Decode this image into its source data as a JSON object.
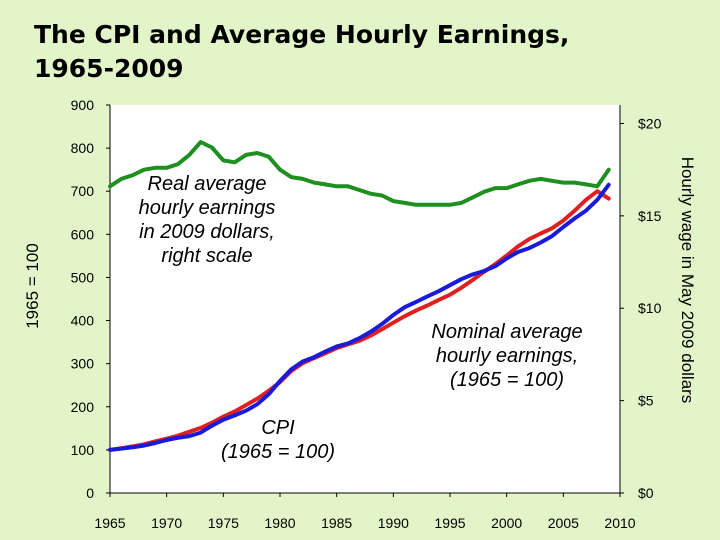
{
  "title": {
    "line1": "The CPI and Average Hourly Earnings,",
    "line2": "1965-2009"
  },
  "chart_data": {
    "type": "line",
    "x_ticks": [
      "1965",
      "1970",
      "1975",
      "1980",
      "1985",
      "1990",
      "1995",
      "2000",
      "2005",
      "2010"
    ],
    "xlim": [
      1965,
      2010
    ],
    "left_axis": {
      "label": "1965 = 100",
      "ticks": [
        "0",
        "100",
        "200",
        "300",
        "400",
        "500",
        "600",
        "700",
        "800",
        "900"
      ],
      "ylim": [
        0,
        900
      ]
    },
    "right_axis": {
      "label": "Hourly wage in May 2009 dollars",
      "ticks": [
        "$0",
        "$5",
        "$10",
        "$15",
        "$20"
      ],
      "ylim": [
        0,
        21
      ]
    },
    "annotations": {
      "real": [
        "Real average",
        "hourly earnings",
        "in 2009 dollars,",
        "right scale"
      ],
      "nominal": [
        "Nominal average",
        "hourly earnings,",
        "(1965 = 100)"
      ],
      "cpi": [
        "CPI",
        "(1965 = 100)"
      ]
    },
    "series": [
      {
        "id": "cpi",
        "axis": "left",
        "color": "#1a1adc",
        "points": [
          [
            1965,
            100
          ],
          [
            1966,
            103
          ],
          [
            1967,
            106
          ],
          [
            1968,
            110
          ],
          [
            1969,
            116
          ],
          [
            1970,
            123
          ],
          [
            1971,
            128
          ],
          [
            1972,
            132
          ],
          [
            1973,
            140
          ],
          [
            1974,
            156
          ],
          [
            1975,
            170
          ],
          [
            1976,
            180
          ],
          [
            1977,
            191
          ],
          [
            1978,
            206
          ],
          [
            1979,
            229
          ],
          [
            1980,
            260
          ],
          [
            1981,
            287
          ],
          [
            1982,
            305
          ],
          [
            1983,
            315
          ],
          [
            1984,
            328
          ],
          [
            1985,
            340
          ],
          [
            1986,
            347
          ],
          [
            1987,
            359
          ],
          [
            1988,
            374
          ],
          [
            1989,
            392
          ],
          [
            1990,
            413
          ],
          [
            1991,
            431
          ],
          [
            1992,
            443
          ],
          [
            1993,
            456
          ],
          [
            1994,
            468
          ],
          [
            1995,
            482
          ],
          [
            1996,
            496
          ],
          [
            1997,
            507
          ],
          [
            1998,
            515
          ],
          [
            1999,
            526
          ],
          [
            2000,
            544
          ],
          [
            2001,
            559
          ],
          [
            2002,
            568
          ],
          [
            2003,
            581
          ],
          [
            2004,
            596
          ],
          [
            2005,
            617
          ],
          [
            2006,
            637
          ],
          [
            2007,
            655
          ],
          [
            2008,
            680
          ],
          [
            2009,
            715
          ]
        ]
      },
      {
        "id": "nominal",
        "axis": "left",
        "color": "#e01f1f",
        "points": [
          [
            1965,
            100
          ],
          [
            1966,
            104
          ],
          [
            1967,
            108
          ],
          [
            1968,
            113
          ],
          [
            1969,
            120
          ],
          [
            1970,
            126
          ],
          [
            1971,
            133
          ],
          [
            1972,
            142
          ],
          [
            1973,
            151
          ],
          [
            1974,
            163
          ],
          [
            1975,
            177
          ],
          [
            1976,
            189
          ],
          [
            1977,
            204
          ],
          [
            1978,
            219
          ],
          [
            1979,
            237
          ],
          [
            1980,
            257
          ],
          [
            1981,
            283
          ],
          [
            1982,
            301
          ],
          [
            1983,
            313
          ],
          [
            1984,
            324
          ],
          [
            1985,
            336
          ],
          [
            1986,
            345
          ],
          [
            1987,
            353
          ],
          [
            1988,
            365
          ],
          [
            1989,
            380
          ],
          [
            1990,
            395
          ],
          [
            1991,
            410
          ],
          [
            1992,
            423
          ],
          [
            1993,
            435
          ],
          [
            1994,
            448
          ],
          [
            1995,
            460
          ],
          [
            1996,
            476
          ],
          [
            1997,
            494
          ],
          [
            1998,
            513
          ],
          [
            1999,
            531
          ],
          [
            2000,
            551
          ],
          [
            2001,
            572
          ],
          [
            2002,
            589
          ],
          [
            2003,
            602
          ],
          [
            2004,
            614
          ],
          [
            2005,
            632
          ],
          [
            2006,
            655
          ],
          [
            2007,
            680
          ],
          [
            2008,
            700
          ],
          [
            2009,
            683
          ]
        ]
      },
      {
        "id": "real",
        "axis": "right",
        "color": "#1f8f1f",
        "points": [
          [
            1965,
            16.6
          ],
          [
            1966,
            17.0
          ],
          [
            1967,
            17.2
          ],
          [
            1968,
            17.5
          ],
          [
            1969,
            17.6
          ],
          [
            1970,
            17.6
          ],
          [
            1971,
            17.8
          ],
          [
            1972,
            18.3
          ],
          [
            1973,
            19.0
          ],
          [
            1974,
            18.7
          ],
          [
            1975,
            18.0
          ],
          [
            1976,
            17.9
          ],
          [
            1977,
            18.3
          ],
          [
            1978,
            18.4
          ],
          [
            1979,
            18.2
          ],
          [
            1980,
            17.5
          ],
          [
            1981,
            17.1
          ],
          [
            1982,
            17.0
          ],
          [
            1983,
            16.8
          ],
          [
            1984,
            16.7
          ],
          [
            1985,
            16.6
          ],
          [
            1986,
            16.6
          ],
          [
            1987,
            16.4
          ],
          [
            1988,
            16.2
          ],
          [
            1989,
            16.1
          ],
          [
            1990,
            15.8
          ],
          [
            1991,
            15.7
          ],
          [
            1992,
            15.6
          ],
          [
            1993,
            15.6
          ],
          [
            1994,
            15.6
          ],
          [
            1995,
            15.6
          ],
          [
            1996,
            15.7
          ],
          [
            1997,
            16.0
          ],
          [
            1998,
            16.3
          ],
          [
            1999,
            16.5
          ],
          [
            2000,
            16.5
          ],
          [
            2001,
            16.7
          ],
          [
            2002,
            16.9
          ],
          [
            2003,
            17.0
          ],
          [
            2004,
            16.9
          ],
          [
            2005,
            16.8
          ],
          [
            2006,
            16.8
          ],
          [
            2007,
            16.7
          ],
          [
            2008,
            16.6
          ],
          [
            2009,
            17.5
          ]
        ]
      }
    ]
  }
}
